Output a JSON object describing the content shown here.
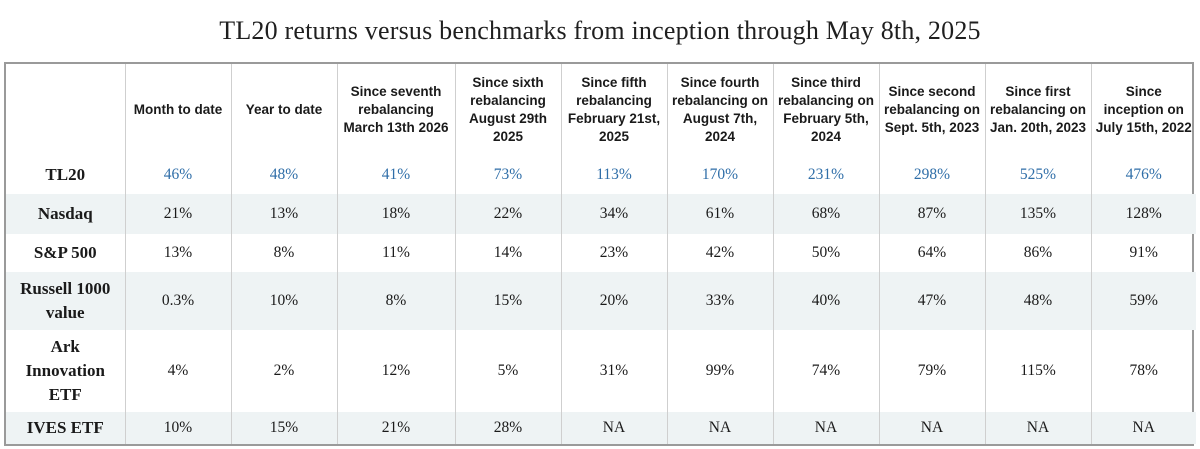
{
  "title": "TL20 returns versus benchmarks from inception through May 8th, 2025",
  "colors": {
    "highlight": "#2f6ea8",
    "row_shade": "#eef3f4",
    "border": "#9a9a9a"
  },
  "columns": [
    "",
    "Month to date",
    "Year to date",
    "Since seventh rebalancing March 13th 2026",
    "Since sixth rebalancing August 29th 2025",
    "Since fifth rebalancing February 21st, 2025",
    "Since fourth rebalancing on August 7th, 2024",
    "Since third rebalancing on February 5th, 2024",
    "Since second rebalancing on Sept. 5th, 2023",
    "Since first rebalancing on Jan. 20th, 2023",
    "Since inception on July 15th, 2022"
  ],
  "rows": [
    {
      "name": "TL20",
      "values": [
        "46%",
        "48%",
        "41%",
        "73%",
        "113%",
        "170%",
        "231%",
        "298%",
        "525%",
        "476%"
      ]
    },
    {
      "name": "Nasdaq",
      "values": [
        "21%",
        "13%",
        "18%",
        "22%",
        "34%",
        "61%",
        "68%",
        "87%",
        "135%",
        "128%"
      ]
    },
    {
      "name": "S&P 500",
      "values": [
        "13%",
        "8%",
        "11%",
        "14%",
        "23%",
        "42%",
        "50%",
        "64%",
        "86%",
        "91%"
      ]
    },
    {
      "name": "Russell 1000 value",
      "values": [
        "0.3%",
        "10%",
        "8%",
        "15%",
        "20%",
        "33%",
        "40%",
        "47%",
        "48%",
        "59%"
      ]
    },
    {
      "name": "Ark Innovation ETF",
      "values": [
        "4%",
        "2%",
        "12%",
        "5%",
        "31%",
        "99%",
        "74%",
        "79%",
        "115%",
        "78%"
      ]
    },
    {
      "name": "IVES ETF",
      "values": [
        "10%",
        "15%",
        "21%",
        "28%",
        "NA",
        "NA",
        "NA",
        "NA",
        "NA",
        "NA"
      ]
    }
  ]
}
